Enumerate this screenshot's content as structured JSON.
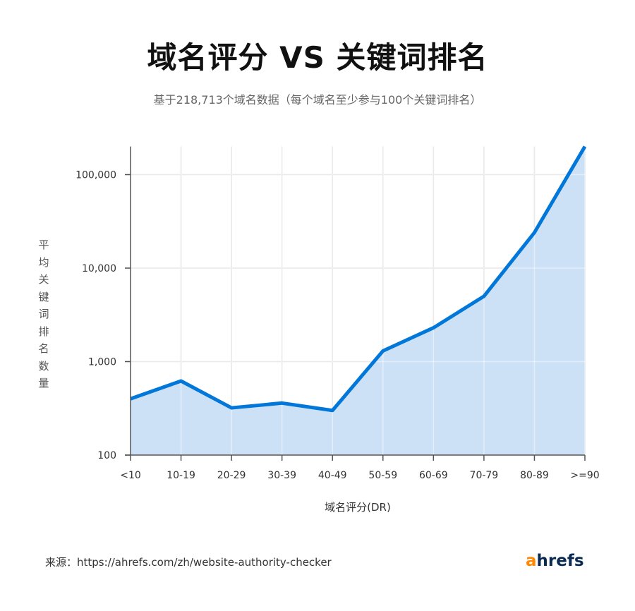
{
  "title": "域名评分 VS 关键词排名",
  "subtitle": "基于218,713个域名数据（每个域名至少参与100个关键词排名）",
  "source": "来源：https://ahrefs.com/zh/website-authority-checker",
  "logo": {
    "first_letter": "a",
    "rest": "hrefs",
    "accent_color": "#ff8800",
    "text_color": "#0a2a52"
  },
  "chart_data": {
    "type": "area",
    "title": "域名评分 VS 关键词排名",
    "subtitle": "基于218,713个域名数据（每个域名至少参与100个关键词排名）",
    "xlabel": "域名评分(DR)",
    "ylabel": "平均关键词排名数量",
    "y_scale": "log",
    "ylim": [
      100,
      200000
    ],
    "y_ticks": [
      100,
      1000,
      10000,
      100000
    ],
    "y_tick_labels": [
      "100",
      "1,000",
      "10,000",
      "100,000"
    ],
    "categories": [
      "<10",
      "10-19",
      "20-29",
      "30-39",
      "40-49",
      "50-59",
      "60-69",
      "70-79",
      "80-89",
      ">=90"
    ],
    "series": [
      {
        "values": [
          400,
          620,
          320,
          360,
          300,
          1300,
          2300,
          5000,
          24000,
          200000
        ],
        "color": "#0077d9",
        "fill": "#cce1f6"
      }
    ],
    "grid": true
  }
}
